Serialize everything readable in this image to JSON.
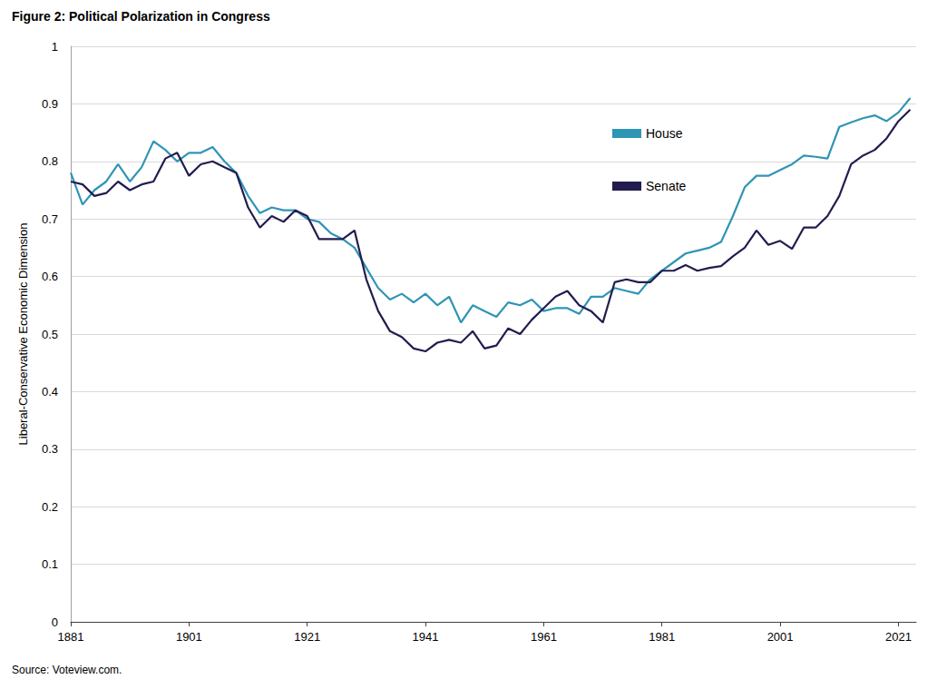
{
  "chart_data": {
    "type": "line",
    "title": "Figure 2: Political Polarization in Congress",
    "source": "Source: Voteview.com.",
    "y_label": "Liberal-Conservative Economic Dimension",
    "x": [
      1881,
      1883,
      1885,
      1887,
      1889,
      1891,
      1893,
      1895,
      1897,
      1899,
      1901,
      1903,
      1905,
      1907,
      1909,
      1911,
      1913,
      1915,
      1917,
      1919,
      1921,
      1923,
      1925,
      1927,
      1929,
      1931,
      1933,
      1935,
      1937,
      1939,
      1941,
      1943,
      1945,
      1947,
      1949,
      1951,
      1953,
      1955,
      1957,
      1959,
      1961,
      1963,
      1965,
      1967,
      1969,
      1971,
      1973,
      1975,
      1977,
      1979,
      1981,
      1983,
      1985,
      1987,
      1989,
      1991,
      1993,
      1995,
      1997,
      1999,
      2001,
      2003,
      2005,
      2007,
      2009,
      2011,
      2013,
      2015,
      2017,
      2019,
      2021,
      2023
    ],
    "series": [
      {
        "name": "House",
        "color": "#2f95b5",
        "values": [
          0.78,
          0.725,
          0.75,
          0.765,
          0.795,
          0.765,
          0.79,
          0.835,
          0.82,
          0.8,
          0.815,
          0.815,
          0.825,
          0.8,
          0.78,
          0.74,
          0.71,
          0.72,
          0.715,
          0.715,
          0.7,
          0.695,
          0.675,
          0.665,
          0.65,
          0.615,
          0.58,
          0.56,
          0.57,
          0.555,
          0.57,
          0.55,
          0.565,
          0.52,
          0.55,
          0.54,
          0.53,
          0.555,
          0.55,
          0.56,
          0.54,
          0.545,
          0.545,
          0.535,
          0.565,
          0.565,
          0.58,
          0.575,
          0.57,
          0.595,
          0.61,
          0.625,
          0.64,
          0.645,
          0.65,
          0.66,
          0.705,
          0.755,
          0.775,
          0.775,
          0.785,
          0.795,
          0.81,
          0.808,
          0.805,
          0.86,
          0.868,
          0.875,
          0.88,
          0.87,
          0.885,
          0.91
        ]
      },
      {
        "name": "Senate",
        "color": "#221c4f",
        "values": [
          0.765,
          0.76,
          0.74,
          0.745,
          0.765,
          0.75,
          0.76,
          0.765,
          0.805,
          0.815,
          0.775,
          0.795,
          0.8,
          0.79,
          0.78,
          0.72,
          0.685,
          0.705,
          0.695,
          0.715,
          0.705,
          0.665,
          0.665,
          0.665,
          0.68,
          0.595,
          0.54,
          0.505,
          0.495,
          0.475,
          0.47,
          0.485,
          0.49,
          0.485,
          0.505,
          0.475,
          0.48,
          0.51,
          0.5,
          0.525,
          0.545,
          0.565,
          0.575,
          0.55,
          0.54,
          0.52,
          0.59,
          0.595,
          0.59,
          0.59,
          0.61,
          0.61,
          0.62,
          0.61,
          0.615,
          0.618,
          0.635,
          0.65,
          0.68,
          0.655,
          0.662,
          0.648,
          0.685,
          0.685,
          0.705,
          0.74,
          0.795,
          0.81,
          0.82,
          0.84,
          0.87,
          0.89
        ]
      }
    ],
    "xlim": [
      1881,
      2024
    ],
    "xticks": [
      1881,
      1901,
      1921,
      1941,
      1961,
      1981,
      2001,
      2021
    ],
    "ylim": [
      0,
      1
    ],
    "yticks": [
      0,
      0.1,
      0.2,
      0.3,
      0.4,
      0.5,
      0.6,
      0.7,
      0.8,
      0.9,
      1
    ],
    "grid": true,
    "legend": "upper right"
  }
}
